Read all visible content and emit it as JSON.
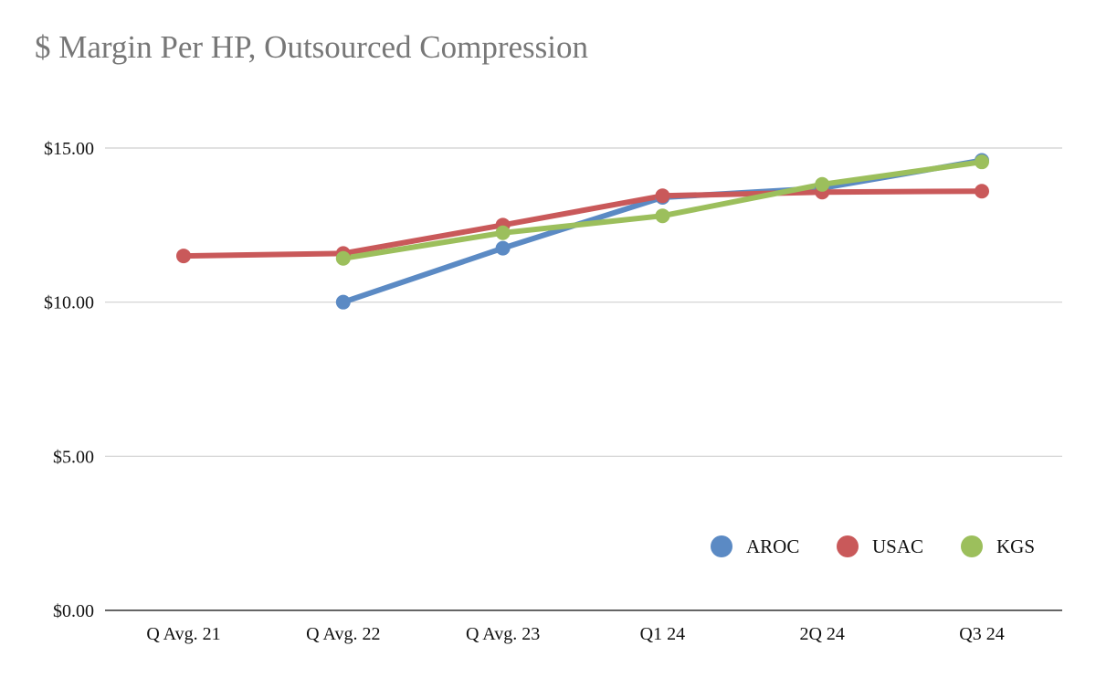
{
  "chart_data": {
    "type": "line",
    "title": "$ Margin Per HP, Outsourced Compression",
    "xlabel": "",
    "ylabel": "",
    "categories": [
      "Q Avg. 21",
      "Q Avg. 22",
      "Q Avg. 23",
      "Q1 24",
      "2Q 24",
      "Q3 24"
    ],
    "ylim": [
      0,
      15
    ],
    "yticks": [
      0,
      5,
      10,
      15
    ],
    "ytick_labels": [
      "$0.00",
      "$5.00",
      "$10.00",
      "$15.00"
    ],
    "grid": true,
    "legend_position": "bottom-right",
    "series": [
      {
        "name": "AROC",
        "color": "#5b8ac4",
        "values": [
          null,
          10.0,
          11.75,
          13.4,
          13.7,
          14.6
        ]
      },
      {
        "name": "USAC",
        "color": "#c9595a",
        "values": [
          11.5,
          11.58,
          12.5,
          13.45,
          13.57,
          13.6
        ]
      },
      {
        "name": "KGS",
        "color": "#9cbf5c",
        "values": [
          null,
          11.42,
          12.25,
          12.8,
          13.82,
          14.55
        ]
      }
    ]
  }
}
